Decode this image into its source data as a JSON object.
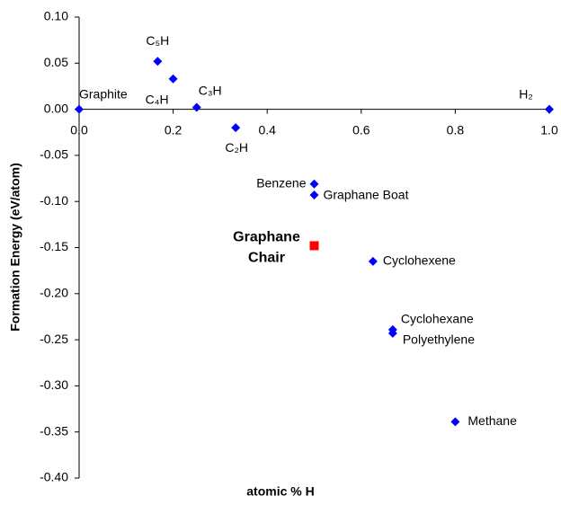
{
  "chart_data": {
    "type": "scatter",
    "y_label": "Formation Energy (eV/atom)",
    "x_label": "atomic % H",
    "xlim": [
      0,
      1
    ],
    "ylim": [
      -0.4,
      0.1
    ],
    "xticks": [
      {
        "value": 0,
        "label": "0.0"
      },
      0.2,
      0.4,
      0.6,
      0.8,
      {
        "value": 1,
        "label": "1.0"
      }
    ],
    "yticks": [
      {
        "value": -0.4,
        "label": "-0.40"
      },
      {
        "value": -0.35,
        "label": "-0.35"
      },
      {
        "value": -0.3,
        "label": "-0.30"
      },
      {
        "value": -0.25,
        "label": "-0.25"
      },
      {
        "value": -0.2,
        "label": "-0.20"
      },
      {
        "value": -0.15,
        "label": "-0.15"
      },
      {
        "value": -0.1,
        "label": "-0.10"
      },
      {
        "value": -0.05,
        "label": "-0.05"
      },
      {
        "value": 0,
        "label": "0.00"
      },
      {
        "value": 0.05,
        "label": "0.05"
      },
      {
        "value": 0.1,
        "label": "0.10"
      }
    ],
    "series": [
      {
        "color": "#0000ff",
        "marker": "diamond",
        "labels": [
          [
            "Graphite"
          ],
          [
            "C₅H"
          ],
          [
            "C₄H"
          ],
          [
            "C₃H"
          ],
          [
            "C₂H"
          ],
          [
            "Benzene"
          ],
          [
            "Graphane Boat"
          ],
          [
            "Cyclohexene"
          ],
          [
            "Cyclohexane"
          ],
          [
            "Polyethylene"
          ],
          [
            "Methane"
          ],
          [
            "H₂"
          ]
        ],
        "x": [
          0,
          0.167,
          0.2,
          0.25,
          0.333,
          0.5,
          0.5,
          0.625,
          0.667,
          0.667,
          0.8,
          1
        ],
        "y": [
          0,
          0.052,
          0.033,
          0.002,
          -0.02,
          -0.081,
          -0.093,
          -0.165,
          -0.239,
          -0.243,
          -0.339,
          0
        ]
      },
      {
        "color": "#ff0000",
        "marker": "square",
        "bold": true,
        "labels": [
          [
            "Graphane",
            "Chair"
          ]
        ],
        "x": [
          0.5
        ],
        "y": [
          -0.148
        ]
      }
    ]
  }
}
